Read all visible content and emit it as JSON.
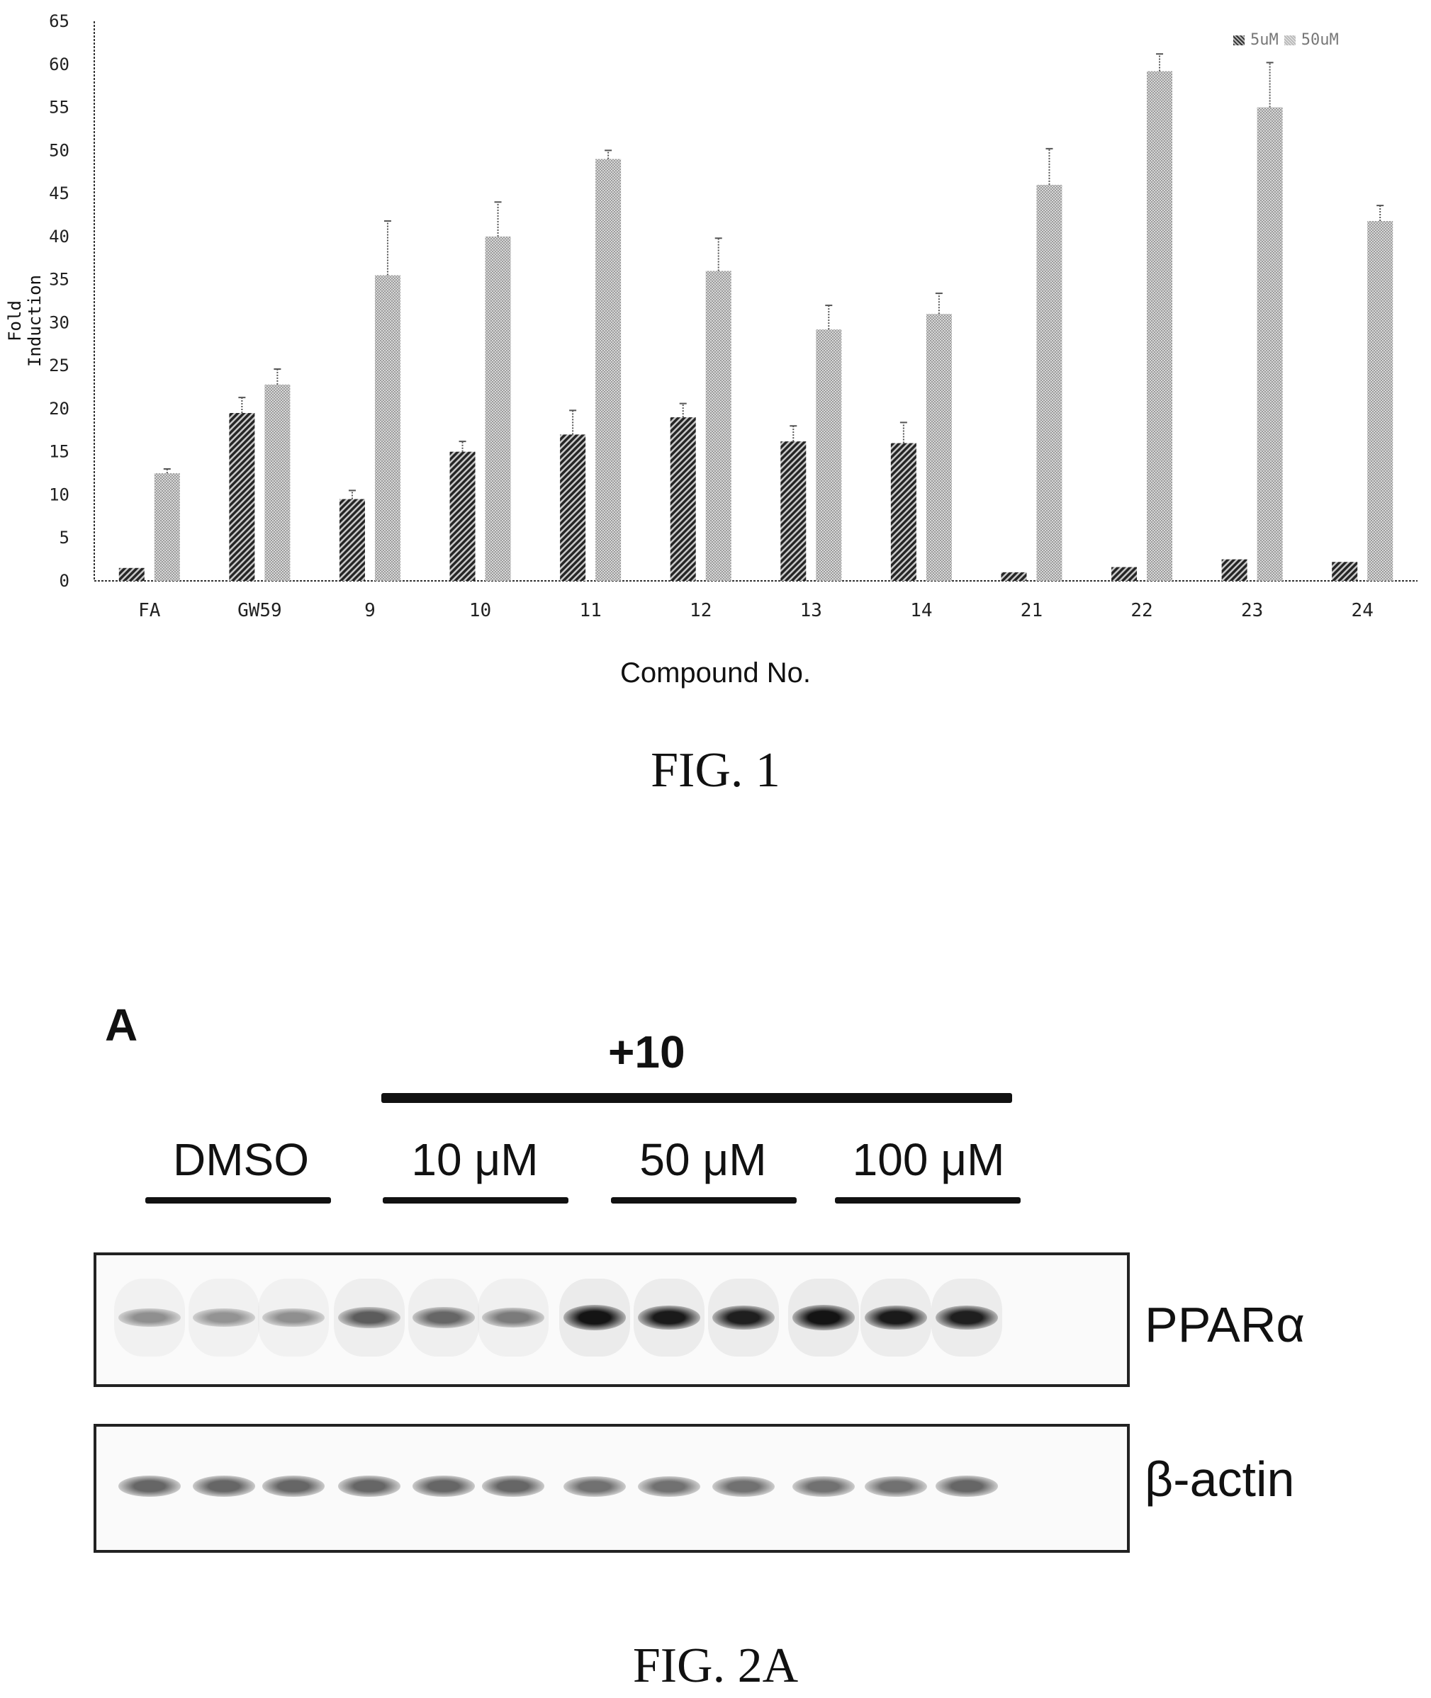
{
  "chart_data": {
    "type": "bar",
    "title": "",
    "xlabel": "Compound No.",
    "ylabel": "Fold Induction",
    "ylim": [
      0,
      65
    ],
    "yticks": [
      0,
      5,
      10,
      15,
      20,
      25,
      30,
      35,
      40,
      45,
      50,
      55,
      60,
      65
    ],
    "categories": [
      "FA",
      "GW59",
      "9",
      "10",
      "11",
      "12",
      "13",
      "14",
      "21",
      "22",
      "23",
      "24"
    ],
    "series": [
      {
        "name": "5uM",
        "pattern": "dense-diagonal-hatch",
        "values": [
          1.5,
          19.5,
          9.5,
          15,
          17,
          19,
          16.2,
          16,
          1,
          1.6,
          2.5,
          2.2
        ],
        "errors": [
          0,
          1.8,
          1,
          1.2,
          2.8,
          1.6,
          1.8,
          2.4,
          0,
          0,
          0,
          0
        ]
      },
      {
        "name": "50uM",
        "pattern": "light-stipple",
        "values": [
          12.5,
          22.8,
          35.5,
          40,
          49,
          36,
          29.2,
          31,
          46,
          59.2,
          55,
          41.8
        ],
        "errors": [
          0.5,
          1.8,
          6.3,
          4,
          1,
          3.8,
          2.8,
          2.4,
          4.2,
          2,
          5.2,
          1.8
        ]
      }
    ],
    "grid": false,
    "legend": "top-right"
  },
  "captions": {
    "fig1": "FIG. 1",
    "fig2a": "FIG. 2A"
  },
  "blot": {
    "panel": "A",
    "treatment": "+10",
    "doses": [
      "DMSO",
      "10 μM",
      "50 μM",
      "100 μM"
    ],
    "rows": [
      {
        "label": "PPARα",
        "intensities": [
          0.35,
          0.33,
          0.35,
          0.6,
          0.55,
          0.45,
          0.95,
          0.92,
          0.9,
          0.95,
          0.92,
          0.9
        ]
      },
      {
        "label": "β-actin",
        "intensities": [
          0.55,
          0.55,
          0.55,
          0.55,
          0.55,
          0.55,
          0.5,
          0.5,
          0.5,
          0.5,
          0.5,
          0.55
        ]
      }
    ]
  }
}
